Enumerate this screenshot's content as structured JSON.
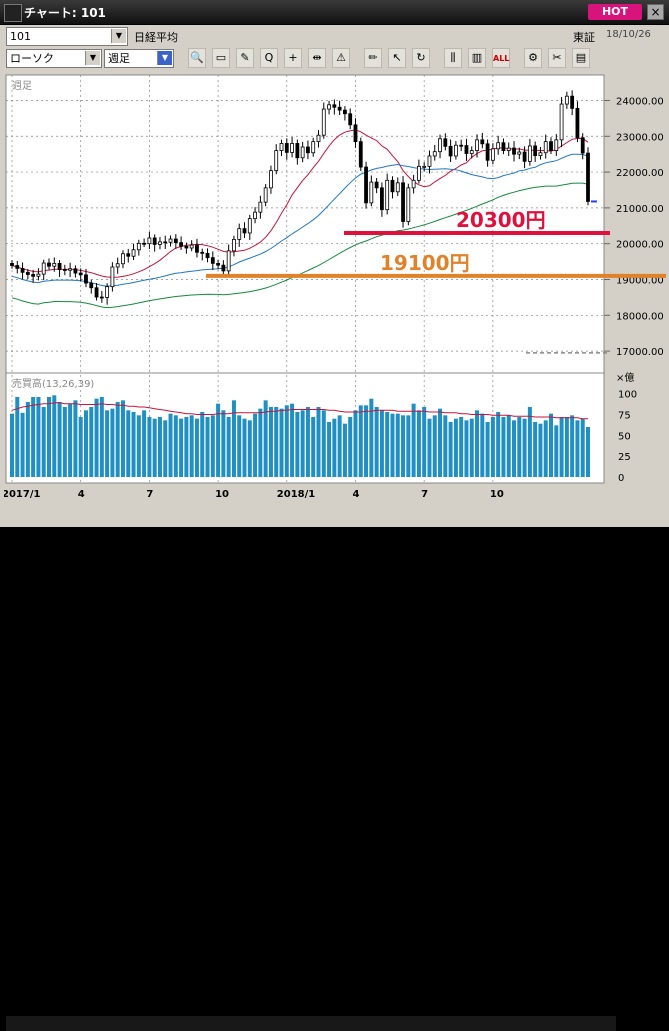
{
  "window": {
    "title": "チャート: 101",
    "hot_label": "HOT",
    "close_label": "×"
  },
  "header": {
    "code": "101",
    "name": "日経平均",
    "market": "東証",
    "date": "18/10/26"
  },
  "controls": {
    "chart_type": "ローソク",
    "period": "週足"
  },
  "toolbar": {
    "icons": [
      "zoom-icon",
      "window-icon",
      "line-draw-icon",
      "search-icon",
      "crosshair-icon",
      "split-icon",
      "warning-icon",
      "pen-icon",
      "cursor-icon",
      "redo-icon",
      "candle-icon",
      "bars-icon",
      "all-icon",
      "settings-icon",
      "tools-icon",
      "extra-icon"
    ],
    "all_label": "ALL"
  },
  "colors": {
    "up": "#ffffff",
    "down": "#000000",
    "ma1": "#c8143c",
    "ma2": "#1e78c8",
    "ma3": "#148c3c",
    "volume": "#1f8fc4",
    "line20300": "#e0103c",
    "line19100": "#e0822a"
  },
  "chart_data": [
    {
      "type": "candlestick",
      "title": "",
      "period_label": "週足",
      "ylim": [
        16500,
        24600
      ],
      "y_ticks": [
        "24000.00",
        "23000.00",
        "22000.00",
        "21000.00",
        "20000.00",
        "19000.00",
        "18000.00",
        "17000.00"
      ],
      "x_ticks": [
        "2017/1",
        "4",
        "7",
        "10",
        "2018/1",
        "4",
        "7",
        "10"
      ],
      "close": [
        19390,
        19310,
        19200,
        19140,
        19090,
        19150,
        19460,
        19370,
        19450,
        19280,
        19260,
        19300,
        19180,
        19130,
        18900,
        18770,
        18510,
        18500,
        18800,
        19350,
        19440,
        19720,
        19650,
        19830,
        20010,
        20000,
        20160,
        19980,
        20050,
        20040,
        20130,
        20030,
        19930,
        19880,
        19960,
        19760,
        19730,
        19610,
        19450,
        19400,
        19240,
        19800,
        20120,
        20420,
        20300,
        20700,
        20880,
        21160,
        21560,
        22040,
        22600,
        22800,
        22550,
        22800,
        22400,
        22700,
        22540,
        22850,
        23030,
        23760,
        23880,
        23810,
        23730,
        23630,
        23320,
        22850,
        22140,
        21140,
        21720,
        21560,
        20950,
        21770,
        21450,
        21700,
        20620,
        21560,
        21770,
        22160,
        22160,
        22450,
        22570,
        22930,
        22720,
        22450,
        22750,
        22740,
        22520,
        22600,
        22900,
        22790,
        22330,
        22650,
        22820,
        22600,
        22670,
        22500,
        22560,
        22300,
        22730,
        22460,
        22540,
        22850,
        22600,
        22900,
        23900,
        24120,
        23780,
        22960,
        22530,
        21180
      ],
      "highs_lows_note": "",
      "legend": [],
      "annotations": [
        {
          "label": "20300円",
          "value": 20300
        },
        {
          "label": "19100円",
          "value": 19100
        }
      ]
    },
    {
      "type": "bar",
      "title": "売買高",
      "params": "(13,26,39)",
      "unit_label": "×億",
      "ylim": [
        0,
        120
      ],
      "y_ticks": [
        "100",
        "75",
        "50",
        "25",
        "0"
      ],
      "values": [
        76,
        96,
        77,
        90,
        96,
        96,
        84,
        96,
        98,
        90,
        84,
        88,
        92,
        72,
        80,
        84,
        94,
        96,
        80,
        82,
        90,
        92,
        80,
        78,
        74,
        80,
        72,
        70,
        72,
        68,
        76,
        74,
        70,
        72,
        74,
        70,
        78,
        72,
        74,
        88,
        80,
        72,
        92,
        74,
        70,
        68,
        76,
        82,
        92,
        84,
        84,
        82,
        86,
        88,
        78,
        80,
        84,
        72,
        84,
        80,
        66,
        70,
        74,
        64,
        72,
        80,
        86,
        86,
        94,
        84,
        80,
        78,
        76,
        76,
        74,
        74,
        88,
        80,
        84,
        70,
        74,
        82,
        74,
        66,
        70,
        72,
        68,
        70,
        80,
        76,
        66,
        72,
        78,
        72,
        74,
        68,
        72,
        70,
        84,
        66,
        64,
        68,
        76,
        62,
        72,
        72,
        74,
        68,
        70,
        60
      ],
      "ma": [
        80,
        82,
        84,
        85,
        86,
        87,
        88,
        88,
        89,
        89,
        88,
        88,
        88,
        87,
        87,
        87,
        87,
        88,
        87,
        87,
        86,
        86,
        85,
        85,
        84,
        84,
        83,
        82,
        81,
        80,
        79,
        78,
        77,
        76,
        76,
        75,
        75,
        75,
        75,
        76,
        76,
        76,
        77,
        77,
        77,
        77,
        77,
        77,
        78,
        79,
        79,
        80,
        80,
        81,
        81,
        81,
        81,
        81,
        81,
        81,
        80,
        80,
        79,
        78,
        78,
        78,
        78,
        79,
        79,
        80,
        80,
        80,
        80,
        79,
        79,
        79,
        79,
        79,
        79,
        78,
        78,
        78,
        77,
        77,
        77,
        76,
        76,
        75,
        75,
        75,
        75,
        74,
        74,
        74,
        74,
        73,
        73,
        73,
        73,
        72,
        72,
        72,
        72,
        71,
        71,
        71,
        71,
        71,
        70,
        70
      ]
    }
  ]
}
